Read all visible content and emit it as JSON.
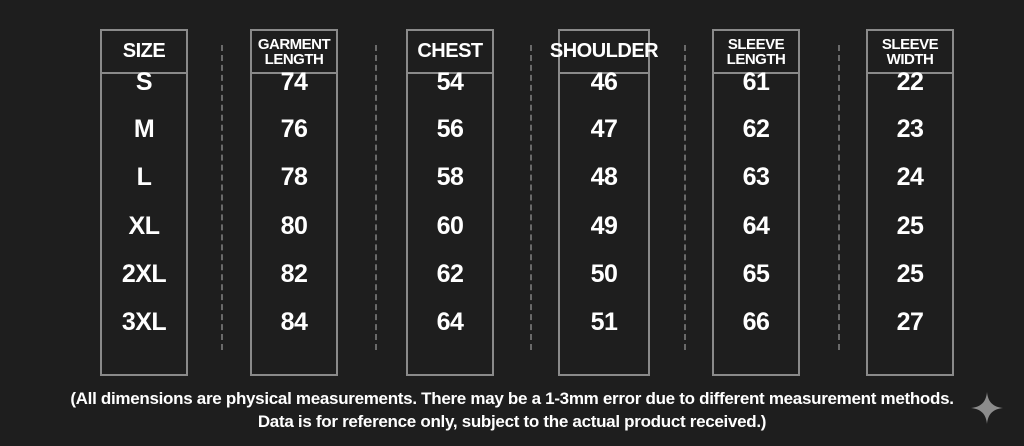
{
  "columns": [
    {
      "header": "SIZE",
      "values": [
        "S",
        "M",
        "L",
        "XL",
        "2XL",
        "3XL"
      ]
    },
    {
      "header": "GARMENT\nLENGTH",
      "values": [
        "74",
        "76",
        "78",
        "80",
        "82",
        "84"
      ]
    },
    {
      "header": "CHEST",
      "values": [
        "54",
        "56",
        "58",
        "60",
        "62",
        "64"
      ]
    },
    {
      "header": "SHOULDER",
      "values": [
        "46",
        "47",
        "48",
        "49",
        "50",
        "51"
      ]
    },
    {
      "header": "SLEEVE\nLENGTH",
      "values": [
        "61",
        "62",
        "63",
        "64",
        "65",
        "66"
      ]
    },
    {
      "header": "SLEEVE\nWIDTH",
      "values": [
        "22",
        "23",
        "24",
        "25",
        "25",
        "27"
      ]
    }
  ],
  "note": {
    "line1": "(All dimensions are physical measurements. There may be a 1-3mm error due to different measurement methods.",
    "line2": "Data is for reference only, subject to the actual product received.)"
  },
  "icons": {
    "watermark": "sparkle-icon"
  },
  "colors": {
    "background": "#1e1e1e",
    "border": "#8a8a8a",
    "text": "#ffffff",
    "watermark": "#8c8c8c"
  }
}
